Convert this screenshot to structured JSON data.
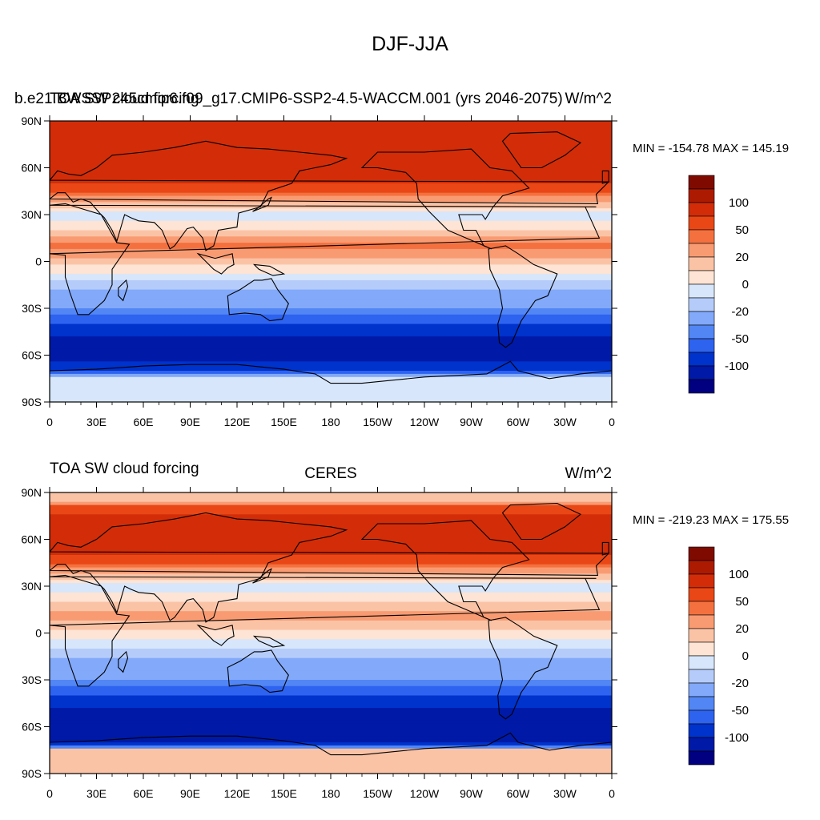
{
  "title": "DJF-JJA",
  "colors": {
    "levels_fill": [
      "#000080",
      "#0019a6",
      "#0032cc",
      "#2e63f0",
      "#5286f5",
      "#82a9fa",
      "#b5ccfb",
      "#d7e6fb",
      "#fde4d4",
      "#fbc3a6",
      "#f99b72",
      "#f4713f",
      "#ea4716",
      "#d22d08",
      "#ad1a02",
      "#7f0b00"
    ],
    "land_outline": "#000000",
    "missing": "#ffffff"
  },
  "colorbar": {
    "tick_labels": [
      "100",
      "50",
      "20",
      "0",
      "-20",
      "-50",
      "-100"
    ]
  },
  "x_ticks": [
    "0",
    "30E",
    "60E",
    "90E",
    "120E",
    "150E",
    "180",
    "150W",
    "120W",
    "90W",
    "60W",
    "30W",
    "0"
  ],
  "y_ticks": [
    "90N",
    "60N",
    "30N",
    "0",
    "30S",
    "60S",
    "90S"
  ],
  "panels": [
    {
      "title_left": "TOA SW cloud forcing",
      "title_center": "b.e21.BWSSP245cmip6.f09_g17.CMIP6-SSP2-4.5-WACCM.001 (yrs 2046-2075)",
      "title_right": "W/m^2",
      "stats": "MIN = -154.78 MAX = 145.19"
    },
    {
      "title_left": "TOA SW cloud forcing",
      "title_center": "CERES",
      "title_right": "W/m^2",
      "stats": "MIN = -219.23 MAX = 175.55"
    }
  ],
  "chart_data": [
    {
      "type": "heatmap",
      "title": "TOA SW cloud forcing",
      "subtitle": "b.e21.BWSSP245cmip6.f09_g17.CMIP6-SSP2-4.5-WACCM.001 (yrs 2046-2075)",
      "units": "W/m^2",
      "xlim": [
        0,
        360
      ],
      "ylim": [
        -90,
        90
      ],
      "color_levels": [
        -100,
        -50,
        -20,
        0,
        20,
        50,
        100
      ],
      "min": -154.78,
      "max": 145.19,
      "lat_profile": {
        "lat": [
          -90,
          -75,
          -70,
          -60,
          -50,
          -40,
          -30,
          -20,
          -10,
          0,
          10,
          20,
          30,
          40,
          50,
          60,
          70,
          85,
          90
        ],
        "value": [
          -5,
          -5,
          -70,
          -130,
          -110,
          -70,
          -35,
          -25,
          -5,
          15,
          40,
          10,
          -10,
          30,
          70,
          90,
          80,
          80,
          80
        ]
      }
    },
    {
      "type": "heatmap",
      "title": "TOA SW cloud forcing",
      "subtitle": "CERES",
      "units": "W/m^2",
      "xlim": [
        0,
        360
      ],
      "ylim": [
        -90,
        90
      ],
      "color_levels": [
        -100,
        -50,
        -20,
        0,
        20,
        50,
        100
      ],
      "min": -219.23,
      "max": 175.55,
      "lat_profile": {
        "lat": [
          -90,
          -85,
          -75,
          -70,
          -60,
          -50,
          -40,
          -30,
          -20,
          -10,
          0,
          10,
          20,
          30,
          40,
          50,
          60,
          70,
          80,
          85,
          90
        ],
        "value": [
          15,
          15,
          15,
          -120,
          -140,
          -110,
          -70,
          -35,
          -25,
          -10,
          5,
          25,
          10,
          -10,
          30,
          70,
          90,
          85,
          60,
          15,
          15
        ]
      }
    }
  ]
}
